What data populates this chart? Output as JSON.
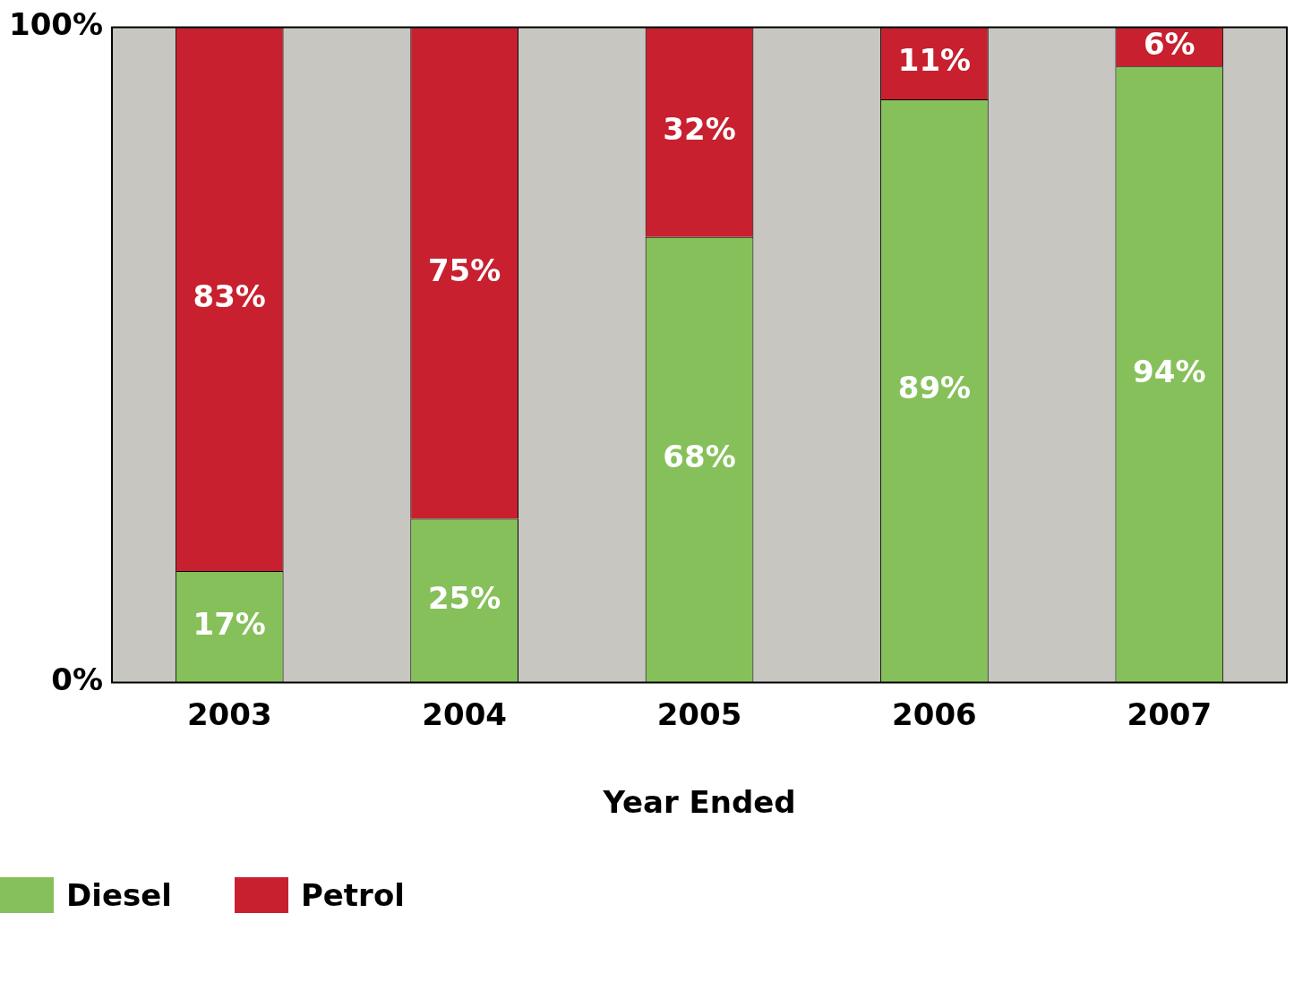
{
  "chart_data": {
    "type": "bar",
    "stacked": true,
    "xlabel": "Year Ended",
    "categories": [
      "2003",
      "2004",
      "2005",
      "2006",
      "2007"
    ],
    "ylim": [
      0,
      100
    ],
    "yticks": [
      {
        "value": 0,
        "label": "0%"
      },
      {
        "value": 100,
        "label": "100%"
      }
    ],
    "grid": false,
    "legend": "bottom left",
    "series": [
      {
        "name": "Diesel",
        "color": "#86c05a",
        "values": [
          17,
          25,
          68,
          89,
          94
        ],
        "value_labels": [
          "17%",
          "25%",
          "68%",
          "89%",
          "94%"
        ]
      },
      {
        "name": "Petrol",
        "color": "#c8202f",
        "values": [
          83,
          75,
          32,
          11,
          6
        ],
        "value_labels": [
          "83%",
          "75%",
          "32%",
          "11%",
          "6%"
        ]
      }
    ]
  }
}
